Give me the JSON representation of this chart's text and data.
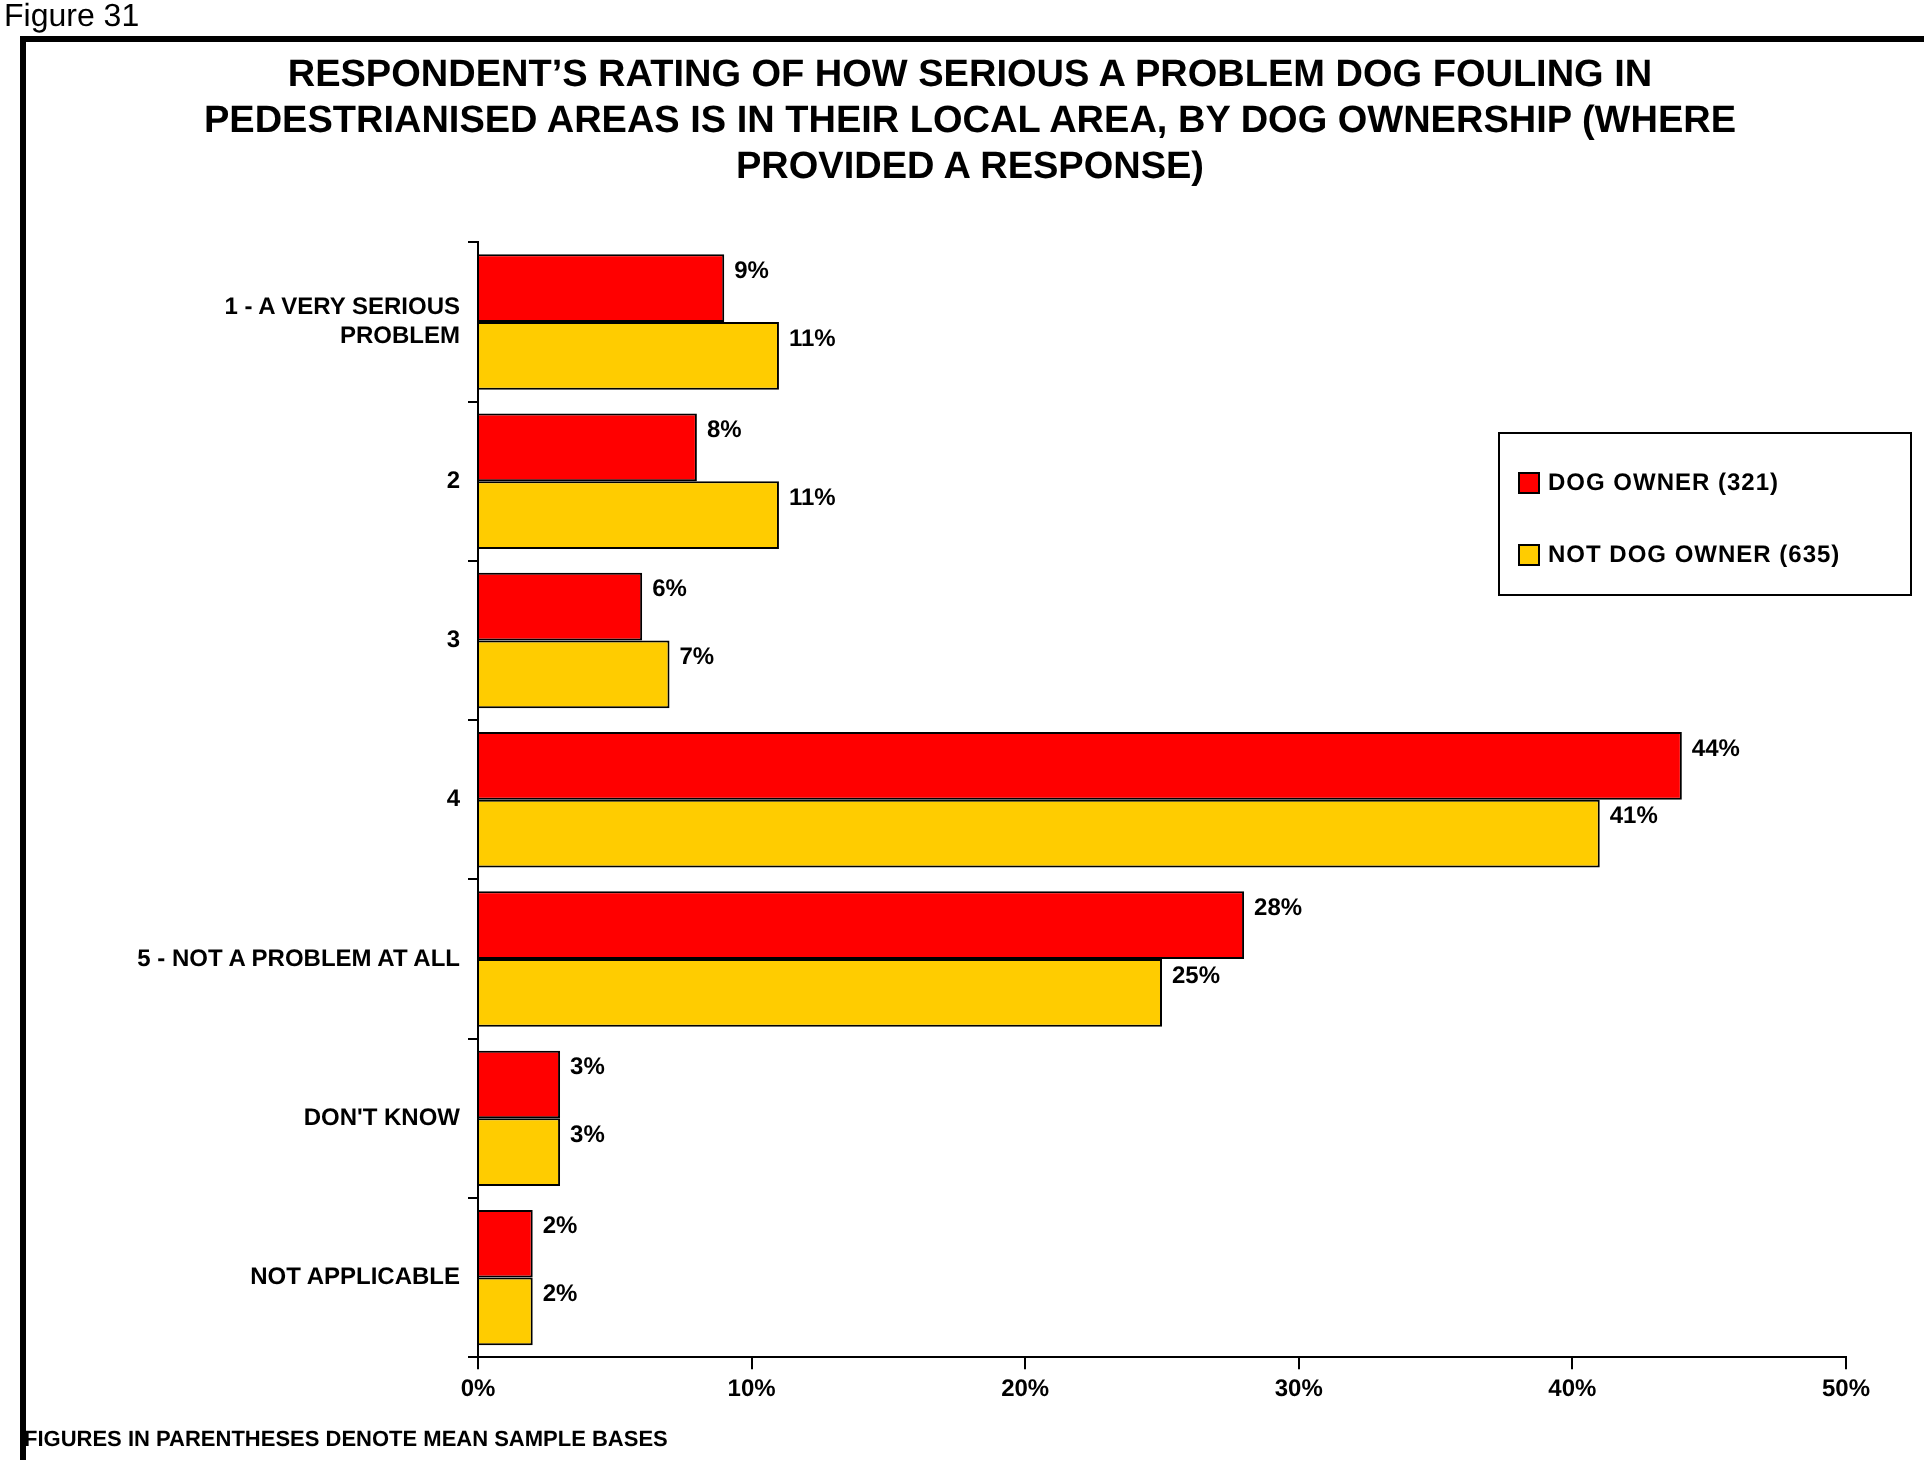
{
  "chart_data": {
    "type": "bar",
    "orientation": "horizontal",
    "title": "RESPONDENT’S RATING OF HOW SERIOUS A PROBLEM DOG FOULING IN PEDESTRIANISED AREAS IS IN THEIR LOCAL AREA, BY DOG OWNERSHIP (WHERE PROVIDED A RESPONSE)",
    "categories": [
      "1 - A VERY SERIOUS PROBLEM",
      "2",
      "3",
      "4",
      "5 - NOT A PROBLEM AT ALL",
      "DON'T KNOW",
      "NOT APPLICABLE"
    ],
    "series": [
      {
        "name": "DOG OWNER (321)",
        "color": "#ff0000",
        "values": [
          9,
          8,
          6,
          44,
          28,
          3,
          2
        ],
        "value_labels": [
          "9%",
          "8%",
          "6%",
          "44%",
          "28%",
          "3%",
          "2%"
        ]
      },
      {
        "name": "NOT DOG OWNER (635)",
        "color": "#ffcc00",
        "values": [
          11,
          11,
          7,
          41,
          25,
          3,
          2
        ],
        "value_labels": [
          "11%",
          "11%",
          "7%",
          "41%",
          "25%",
          "3%",
          "2%"
        ]
      }
    ],
    "xlim": [
      0,
      50
    ],
    "xticks": [
      {
        "value": 0,
        "label": "0%"
      },
      {
        "value": 10,
        "label": "10%"
      },
      {
        "value": 20,
        "label": "20%"
      },
      {
        "value": 30,
        "label": "30%"
      },
      {
        "value": 40,
        "label": "40%"
      },
      {
        "value": 50,
        "label": "50%"
      }
    ],
    "grid": false,
    "legend": "right",
    "annotations": [
      "Figure 31",
      "FIGURES IN PARENTHESES DENOTE MEAN SAMPLE BASES"
    ]
  }
}
